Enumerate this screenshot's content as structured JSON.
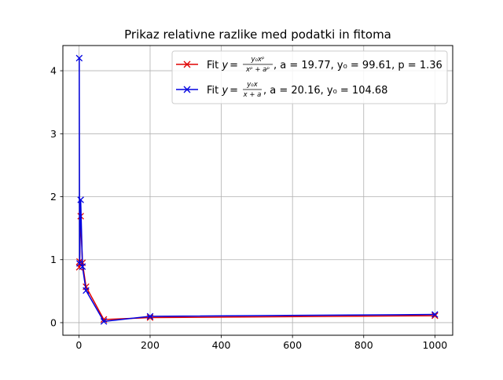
{
  "chart_data": {
    "type": "line",
    "title": "Prikaz relativne razlike med podatki in fitoma",
    "xlabel": "",
    "ylabel": "",
    "xlim": [
      -45,
      1050
    ],
    "ylim": [
      -0.2,
      4.4
    ],
    "xticks": [
      0,
      200,
      400,
      600,
      800,
      1000
    ],
    "yticks": [
      0,
      1,
      2,
      3,
      4
    ],
    "grid": true,
    "legend_position": "top-right",
    "x": [
      1,
      2,
      5,
      10,
      20,
      70,
      200,
      1000
    ],
    "series": [
      {
        "name": "Fit y = y0x^p / (x^p + a^p), a = 19.77, y0 = 99.61, p = 1.36",
        "color": "#e00000",
        "marker": "x",
        "values": [
          0.88,
          0.97,
          1.69,
          0.95,
          0.57,
          0.05,
          0.08,
          0.11
        ]
      },
      {
        "name": "Fit y = y0x / (x + a), a = 20.16, y0 = 104.68",
        "color": "#0000e0",
        "marker": "x",
        "values": [
          4.2,
          0.94,
          1.95,
          0.89,
          0.51,
          0.02,
          0.1,
          0.13
        ]
      }
    ],
    "legend": [
      {
        "prefix": "Fit ",
        "y": "y",
        "eq": "=",
        "num": "y₀xᵖ",
        "den": "xᵖ + aᵖ",
        "params": ", a = 19.77, y₀ = 99.61, p = 1.36"
      },
      {
        "prefix": "Fit ",
        "y": "y",
        "eq": "=",
        "num": "y₀x",
        "den": "x + a",
        "params": ", a = 20.16, y₀ = 104.68"
      }
    ]
  }
}
